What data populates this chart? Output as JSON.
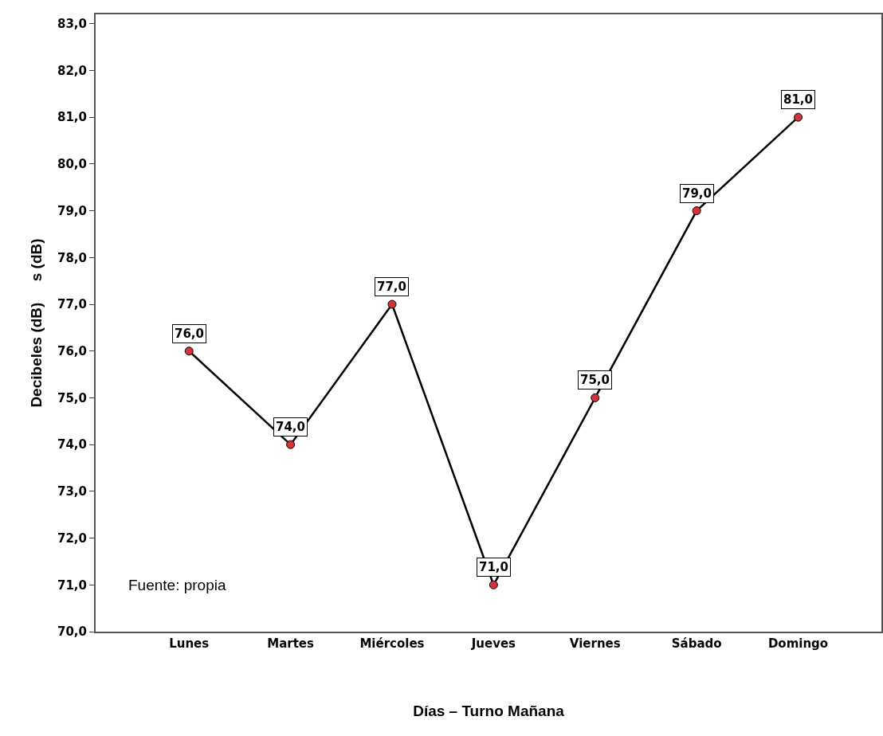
{
  "chart_data": {
    "type": "line",
    "xlabel": "Días – Turno Mañana",
    "ylabel": "Decibeles (dB)     s (dB)",
    "categories": [
      "Lunes",
      "Martes",
      "Miércoles",
      "Jueves",
      "Viernes",
      "Sábado",
      "Domingo"
    ],
    "series": [
      {
        "color": "#000000",
        "values": [
          76,
          74,
          77,
          71,
          75,
          79,
          81
        ],
        "colors": [
          "#d2343c",
          "#d2343c",
          "#d2343c",
          "#d2343c",
          "#d2343c",
          "#d2343c",
          "#d2343c"
        ],
        "value_labels": [
          "76,0",
          "74,0",
          "77,0",
          "71,0",
          "75,0",
          "79,0",
          "81,0"
        ]
      }
    ],
    "marker": "circle",
    "line_style": "solid",
    "ylim": [
      70,
      83.2
    ],
    "yticks": [
      {
        "value": 70,
        "label": "70,0"
      },
      {
        "value": 71,
        "label": "71,0"
      },
      {
        "value": 72,
        "label": "72,0"
      },
      {
        "value": 73,
        "label": "73,0"
      },
      {
        "value": 74,
        "label": "74,0"
      },
      {
        "value": 75,
        "label": "75,0"
      },
      {
        "value": 76,
        "label": "76,0"
      },
      {
        "value": 77,
        "label": "77,0"
      },
      {
        "value": 78,
        "label": "78,0"
      },
      {
        "value": 79,
        "label": "79,0"
      },
      {
        "value": 80,
        "label": "80,0"
      },
      {
        "value": 81,
        "label": "81,0"
      },
      {
        "value": 82,
        "label": "82,0"
      },
      {
        "value": 83,
        "label": "83,0"
      }
    ],
    "annotations": [
      "Fuente: propia"
    ]
  }
}
